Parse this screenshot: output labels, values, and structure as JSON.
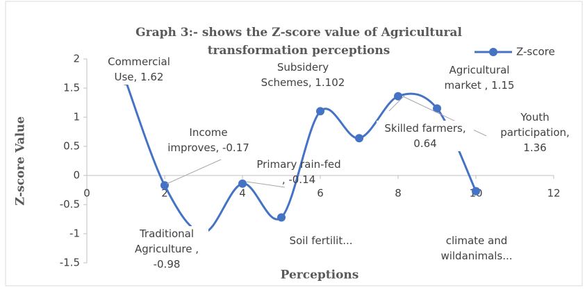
{
  "chart_data": {
    "type": "line",
    "title": "Graph 3:- shows the Z-score value of Agricultural transformation perceptions",
    "x_label": "Perceptions",
    "y_label": "Z-score Value",
    "x": [
      1,
      2,
      3,
      4,
      5,
      6,
      7,
      8,
      9,
      10
    ],
    "series": [
      {
        "name": "Z-score",
        "color": "#4472c4",
        "values": [
          1.62,
          -0.17,
          -0.98,
          -0.14,
          -0.72,
          1.102,
          0.64,
          1.36,
          1.15,
          -0.27
        ]
      }
    ],
    "point_labels": [
      "Commercial Use, 1.62",
      "Income improves, -0.17",
      "Traditional Agriculture , -0.98",
      "Primary rain-fed , -0.14",
      "Soil fertilit...",
      "Subsidery Schemes, 1.102",
      "Skilled farmers, 0.64",
      "Youth participation, 1.36",
      "Agricultural market , 1.15",
      "climate and wildanimals..."
    ],
    "xlim": [
      0,
      12
    ],
    "xticks": [
      0,
      2,
      4,
      6,
      8,
      10,
      12
    ],
    "ylim": [
      -1.5,
      2
    ],
    "yticks": [
      -1.5,
      -1,
      -0.5,
      0,
      0.5,
      1,
      1.5,
      2
    ],
    "smooth": true,
    "legend": "top-right"
  }
}
